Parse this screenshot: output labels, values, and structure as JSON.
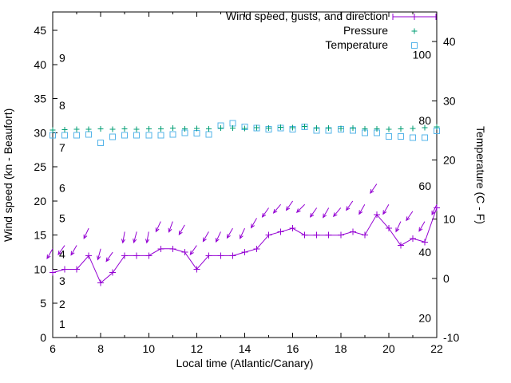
{
  "labels": {
    "xlabel": "Local time (Atlantic/Canary)",
    "ylabel": "Wind speed (kn - Beaufort)",
    "y2label": "Temperature (C - F)"
  },
  "chart_data": {
    "type": "line",
    "title": "",
    "x": [
      6,
      6.5,
      7,
      7.5,
      8,
      8.5,
      9,
      9.5,
      10,
      10.5,
      11,
      11.5,
      12,
      12.5,
      13,
      13.5,
      14,
      14.5,
      15,
      15.5,
      16,
      16.5,
      17,
      17.5,
      18,
      18.5,
      19,
      19.5,
      20,
      20.5,
      21,
      21.5,
      22
    ],
    "series": [
      {
        "name": "Wind speed, gusts, and direction",
        "axis": "left",
        "color": "#9400d3",
        "marker": "plus",
        "speeds": [
          9.5,
          10,
          10,
          12,
          8,
          9.5,
          12,
          12,
          12,
          13,
          13,
          12.5,
          10,
          12,
          12,
          12,
          12.5,
          13,
          15,
          15.5,
          16,
          15,
          15,
          15,
          15,
          15.5,
          15,
          18,
          16,
          13.5,
          14.5,
          14,
          19
        ],
        "gusts": [
          13,
          13.5,
          13.5,
          16,
          13,
          12.5,
          15.5,
          15.5,
          15.5,
          17,
          17,
          16.5,
          13.5,
          15.5,
          15.5,
          16,
          16,
          17.5,
          19,
          19.5,
          20,
          19.5,
          19,
          19,
          19,
          20,
          19.5,
          22.5,
          19.5,
          17,
          18.5,
          17,
          19.5
        ],
        "gust_arrow_angles_deg": [
          210,
          215,
          210,
          205,
          195,
          215,
          190,
          195,
          190,
          205,
          200,
          210,
          215,
          210,
          205,
          210,
          205,
          210,
          215,
          220,
          215,
          225,
          215,
          210,
          220,
          215,
          210,
          215,
          210,
          205,
          215,
          210,
          205
        ]
      },
      {
        "name": "Pressure",
        "axis": "left",
        "color": "#009e73",
        "marker": "plus",
        "values": [
          30.4,
          30.45,
          30.5,
          30.5,
          30.55,
          30.5,
          30.55,
          30.5,
          30.6,
          30.6,
          30.7,
          30.6,
          30.65,
          30.55,
          30.7,
          30.7,
          30.65,
          30.75,
          30.7,
          30.8,
          30.75,
          30.9,
          30.7,
          30.7,
          30.65,
          30.7,
          30.6,
          30.55,
          30.5,
          30.6,
          30.65,
          30.75,
          30.85
        ]
      },
      {
        "name": "Temperature",
        "axis": "right",
        "color": "#56b4e9",
        "marker": "open-square",
        "values_c": [
          24.2,
          24.2,
          24.2,
          24.3,
          22.9,
          23.9,
          24.2,
          24.2,
          24.2,
          24.2,
          24.3,
          24.6,
          24.5,
          24.3,
          25.8,
          26.2,
          25.6,
          25.4,
          25.2,
          25.4,
          25.2,
          25.6,
          25.0,
          25.0,
          25.2,
          25.0,
          24.6,
          24.6,
          24.0,
          24.0,
          23.8,
          23.8,
          24.9
        ]
      }
    ],
    "axes": {
      "x": {
        "label": "Local time (Atlantic/Canary)",
        "min": 6,
        "max": 22,
        "ticks": [
          6,
          8,
          10,
          12,
          14,
          16,
          18,
          20,
          22
        ],
        "minor_ticks": [
          7,
          9,
          11,
          13,
          15,
          17,
          19,
          21
        ]
      },
      "y_left": {
        "label": "Wind speed (kn - Beaufort)",
        "min": 0,
        "max": 47.7,
        "ticks": [
          0,
          5,
          10,
          15,
          20,
          25,
          30,
          35,
          40,
          45
        ],
        "beaufort": [
          {
            "label": "1",
            "kn": 2
          },
          {
            "label": "2",
            "kn": 4.9
          },
          {
            "label": "3",
            "kn": 8.3
          },
          {
            "label": "4",
            "kn": 12.2
          },
          {
            "label": "5",
            "kn": 17.5
          },
          {
            "label": "6",
            "kn": 21.9
          },
          {
            "label": "7",
            "kn": 27.8
          },
          {
            "label": "8",
            "kn": 34
          },
          {
            "label": "9",
            "kn": 41
          }
        ]
      },
      "y_right": {
        "label": "Temperature (C - F)",
        "min": -10,
        "max": 45,
        "ticks": [
          -10,
          0,
          10,
          20,
          30,
          40
        ],
        "fahrenheit": [
          {
            "label": "20",
            "c": -6.7
          },
          {
            "label": "40",
            "c": 4.4
          },
          {
            "label": "60",
            "c": 15.6
          },
          {
            "label": "80",
            "c": 26.7
          },
          {
            "label": "100",
            "c": 37.8
          }
        ]
      }
    },
    "legend": {
      "position": "top-right",
      "entries": [
        "Wind speed, gusts, and direction",
        "Pressure",
        "Temperature"
      ]
    }
  }
}
